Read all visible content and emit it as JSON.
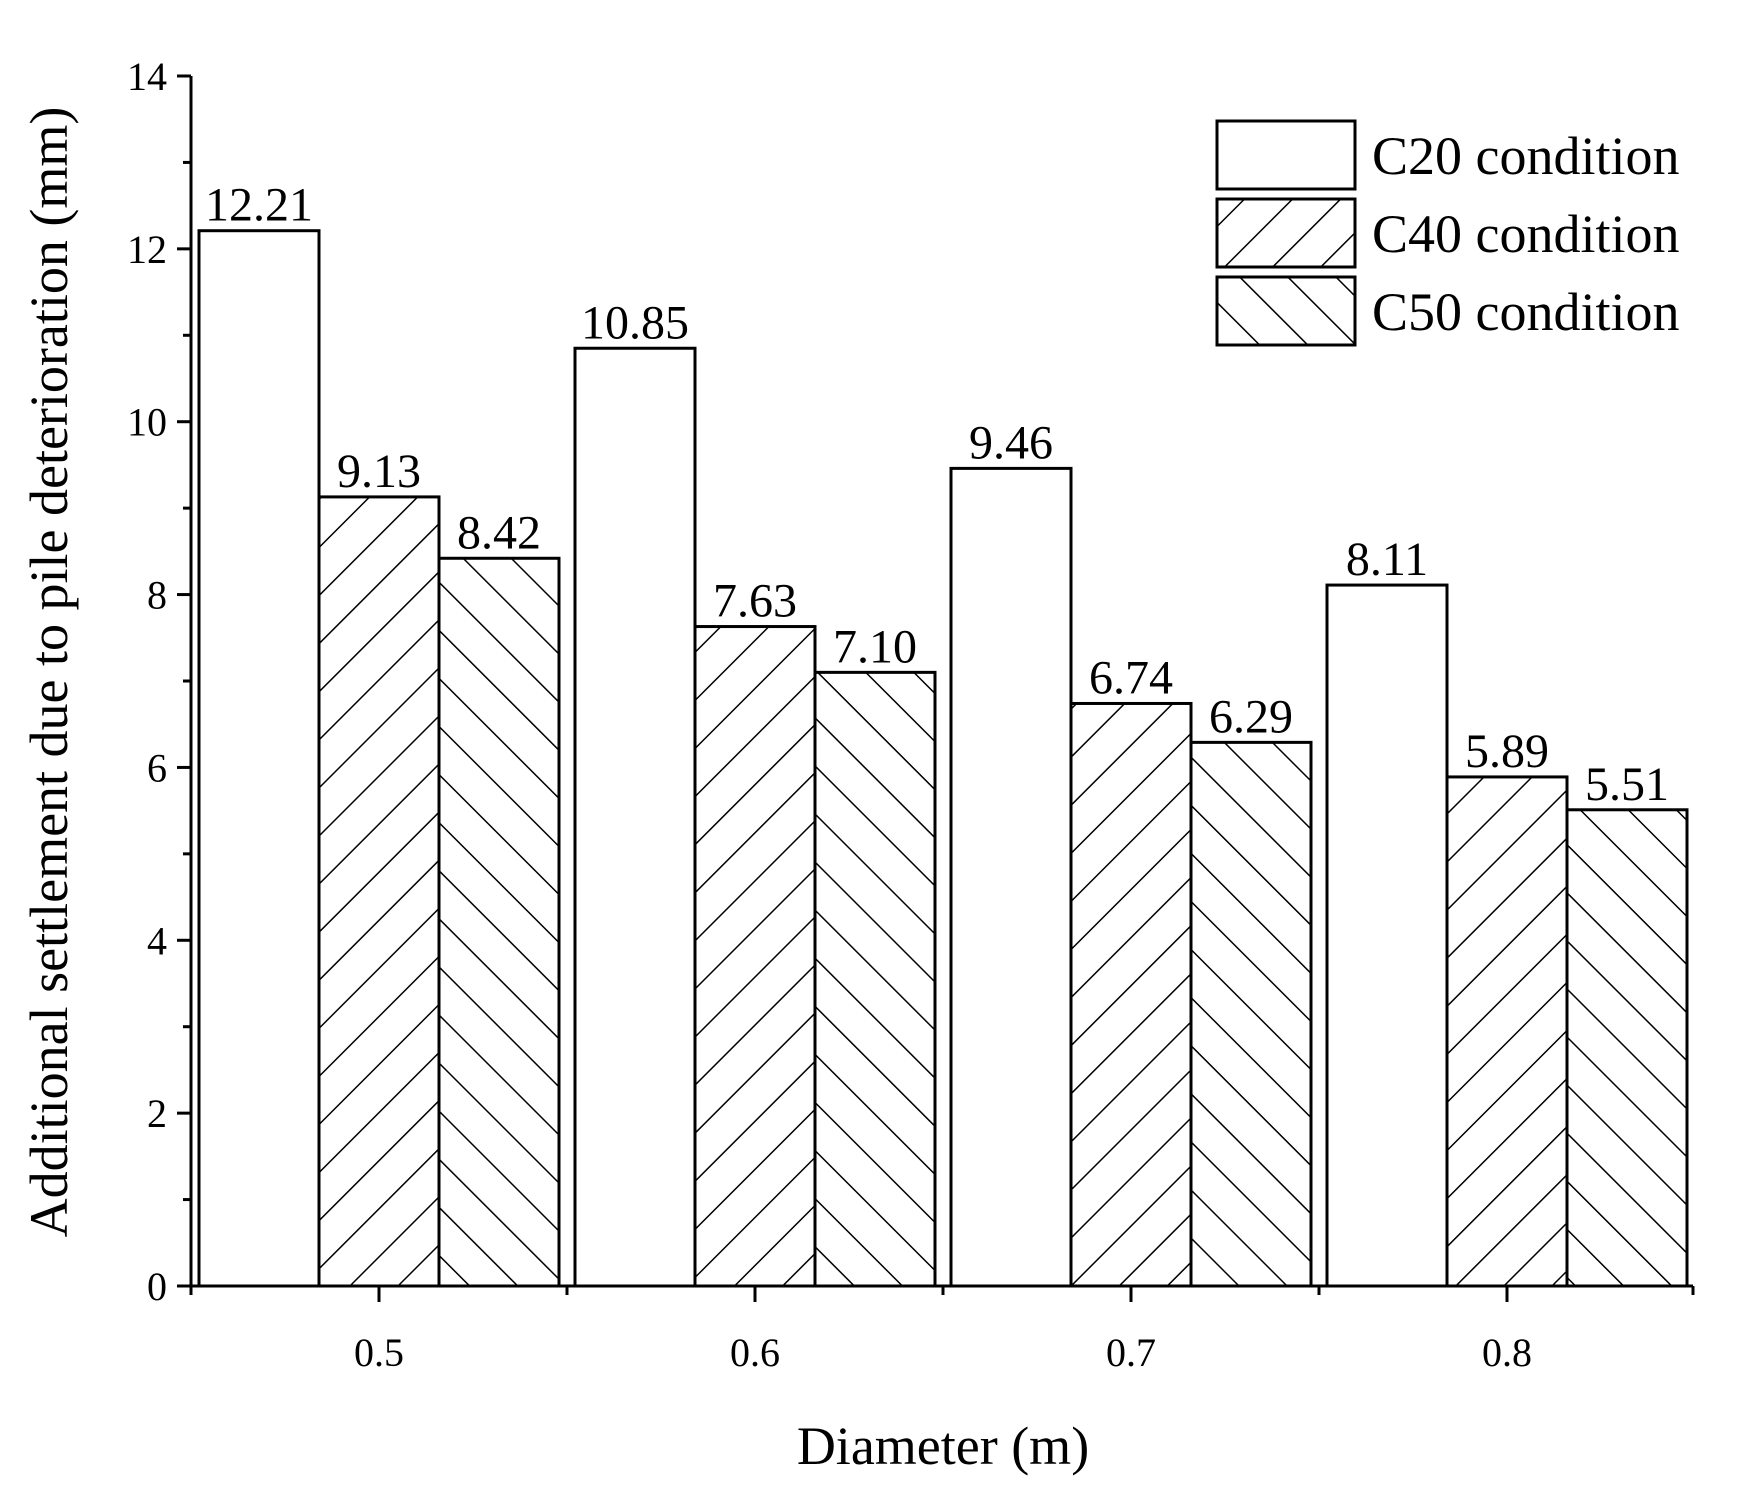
{
  "chart_data": {
    "type": "bar",
    "xlabel": "Diameter (m)",
    "ylabel": "Additional settlement due to pile deterioration (mm)",
    "categories": [
      "0.5",
      "0.6",
      "0.7",
      "0.8"
    ],
    "ylim": [
      0,
      14
    ],
    "yticks": [
      "0",
      "2",
      "4",
      "6",
      "8",
      "10",
      "12",
      "14"
    ],
    "grid": false,
    "legend_position": "top-right",
    "series": [
      {
        "name": "C20 condition",
        "pattern": "none",
        "values": [
          12.21,
          10.85,
          9.46,
          8.11
        ],
        "labels": [
          "12.21",
          "10.85",
          "9.46",
          "8.11"
        ]
      },
      {
        "name": "C40 condition",
        "pattern": "forward-diagonal",
        "values": [
          9.13,
          7.63,
          6.74,
          5.89
        ],
        "labels": [
          "9.13",
          "7.63",
          "6.74",
          "5.89"
        ]
      },
      {
        "name": "C50 condition",
        "pattern": "backward-diagonal",
        "values": [
          8.42,
          7.1,
          6.29,
          5.51
        ],
        "labels": [
          "8.42",
          "7.10",
          "6.29",
          "5.51"
        ]
      }
    ]
  },
  "colors": {
    "stroke": "#000000",
    "fill": "#ffffff"
  }
}
